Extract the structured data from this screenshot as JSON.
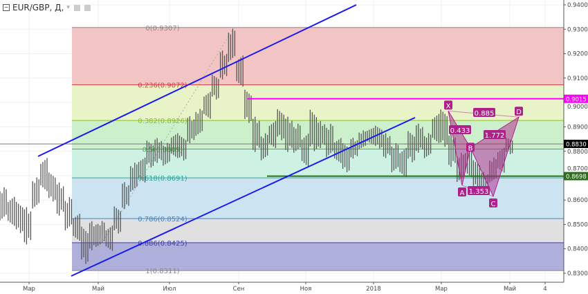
{
  "header": {
    "symbol": "EUR/GBP, Д,",
    "dropdown_icon": "chevron-down-icon",
    "buttons": [
      "settings-icon",
      "gear-icon"
    ]
  },
  "chart_data": {
    "type": "candlestick",
    "title": "EUR/GBP, Д,",
    "ylim": [
      0.829,
      0.942
    ],
    "y_ticks": [
      "0.9400",
      "0.9300",
      "0.9200",
      "0.9100",
      "0.9000",
      "0.8900",
      "0.8800",
      "0.8700",
      "0.8600",
      "0.8500",
      "0.8400",
      "0.8300"
    ],
    "x_ticks": [
      "Мар",
      "Май",
      "Июл",
      "Сен",
      "Ноя",
      "2018",
      "Мар",
      "Май",
      "4"
    ],
    "grid": true,
    "price_ranges": [
      [
        0.85,
        0.866
      ],
      [
        0.848,
        0.862
      ],
      [
        0.845,
        0.86
      ],
      [
        0.84,
        0.858
      ],
      [
        0.855,
        0.87
      ],
      [
        0.862,
        0.878
      ],
      [
        0.858,
        0.872
      ],
      [
        0.852,
        0.868
      ],
      [
        0.846,
        0.862
      ],
      [
        0.842,
        0.855
      ],
      [
        0.832,
        0.85
      ],
      [
        0.838,
        0.852
      ],
      [
        0.84,
        0.852
      ],
      [
        0.838,
        0.85
      ],
      [
        0.845,
        0.858
      ],
      [
        0.855,
        0.868
      ],
      [
        0.862,
        0.876
      ],
      [
        0.866,
        0.878
      ],
      [
        0.872,
        0.885
      ],
      [
        0.874,
        0.886
      ],
      [
        0.873,
        0.884
      ],
      [
        0.876,
        0.888
      ],
      [
        0.875,
        0.887
      ],
      [
        0.882,
        0.895
      ],
      [
        0.885,
        0.898
      ],
      [
        0.892,
        0.905
      ],
      [
        0.9,
        0.912
      ],
      [
        0.908,
        0.922
      ],
      [
        0.915,
        0.931
      ],
      [
        0.905,
        0.92
      ],
      [
        0.89,
        0.906
      ],
      [
        0.878,
        0.895
      ],
      [
        0.875,
        0.888
      ],
      [
        0.88,
        0.893
      ],
      [
        0.883,
        0.898
      ],
      [
        0.878,
        0.895
      ],
      [
        0.878,
        0.892
      ],
      [
        0.872,
        0.888
      ],
      [
        0.878,
        0.898
      ],
      [
        0.88,
        0.893
      ],
      [
        0.876,
        0.892
      ],
      [
        0.874,
        0.886
      ],
      [
        0.87,
        0.884
      ],
      [
        0.876,
        0.886
      ],
      [
        0.88,
        0.889
      ],
      [
        0.882,
        0.89
      ],
      [
        0.88,
        0.891
      ],
      [
        0.876,
        0.888
      ],
      [
        0.87,
        0.884
      ],
      [
        0.868,
        0.882
      ],
      [
        0.874,
        0.889
      ],
      [
        0.878,
        0.892
      ],
      [
        0.876,
        0.888
      ],
      [
        0.882,
        0.896
      ],
      [
        0.88,
        0.898
      ],
      [
        0.872,
        0.888
      ],
      [
        0.866,
        0.88
      ],
      [
        0.868,
        0.882
      ],
      [
        0.863,
        0.877
      ],
      [
        0.862,
        0.872
      ],
      [
        0.866,
        0.878
      ],
      [
        0.87,
        0.882
      ],
      [
        0.878,
        0.886
      ]
    ],
    "fib_levels": [
      {
        "label": "0(0.9307)",
        "price": 0.9307,
        "color": "#888888",
        "fill": "#f2c4c4"
      },
      {
        "label": "0.236(0.9072)",
        "price": 0.9072,
        "color": "#d04040",
        "fill": "#e8f3c8"
      },
      {
        "label": "0.382(0.8926)",
        "price": 0.8926,
        "color": "#8fbf2a",
        "fill": "#ccf0cc"
      },
      {
        "label": "0.5(0.8809)",
        "price": 0.8809,
        "color": "#4cae4c",
        "fill": "#cdf2e4"
      },
      {
        "label": "0.618(0.8691)",
        "price": 0.8691,
        "color": "#26a69a",
        "fill": "#cce4f2"
      },
      {
        "label": "0.786(0.8524)",
        "price": 0.8524,
        "color": "#3d85c6",
        "fill": "#e0e0e0"
      },
      {
        "label": "0.886(0.8425)",
        "price": 0.8425,
        "color": "#4040a0",
        "fill": "#afafdc"
      },
      {
        "label": "1(0.8311)",
        "price": 0.8311,
        "color": "#888888",
        "fill": null
      }
    ],
    "price_labels": [
      {
        "value": "0.9015",
        "price": 0.9015,
        "color": "#ff00ff"
      },
      {
        "value": "0.8830",
        "price": 0.883,
        "color": "#000000"
      },
      {
        "value": "0.8698",
        "price": 0.8698,
        "color": "#2e6b1e"
      }
    ],
    "harmonic_pattern": {
      "points": [
        {
          "label": "X",
          "price": 0.8965
        },
        {
          "label": "A",
          "price": 0.866
        },
        {
          "label": "B",
          "price": 0.8815
        },
        {
          "label": "C",
          "price": 0.8615
        },
        {
          "label": "D",
          "price": 0.894
        }
      ],
      "ratios": [
        "0.885",
        "0.433",
        "1.772",
        "1.353"
      ],
      "color": "#b0208a"
    },
    "channel_color": "#1a1aee"
  }
}
